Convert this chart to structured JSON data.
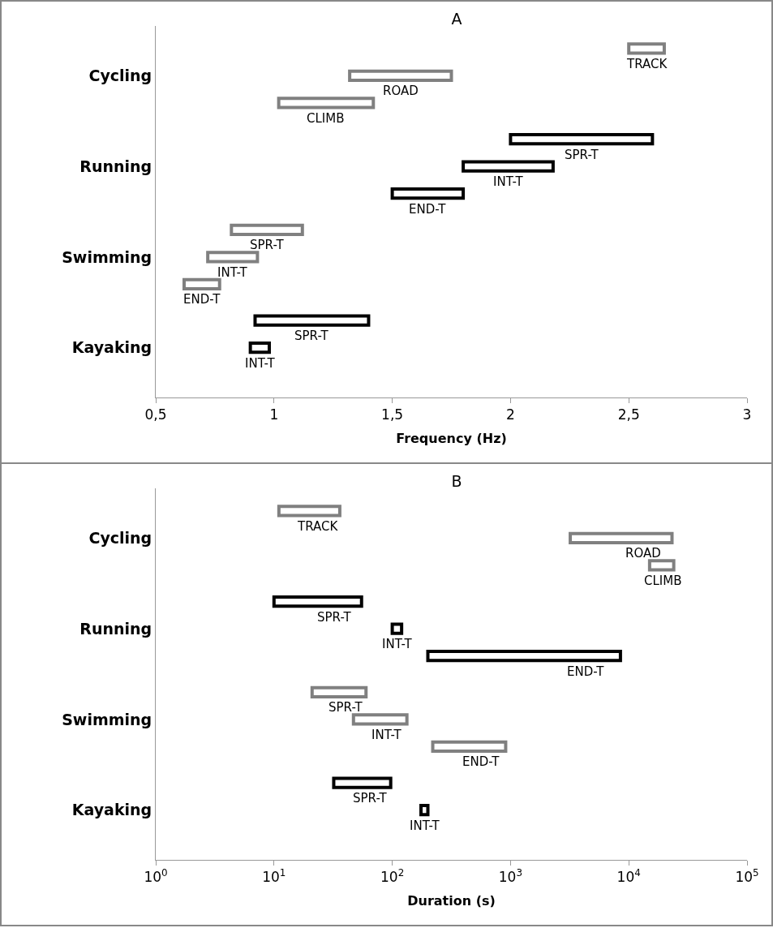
{
  "chart_data": [
    {
      "type": "bar",
      "title": "A",
      "orientation": "horizontal",
      "xlabel": "Frequency (Hz)",
      "xlim": [
        0.5,
        3
      ],
      "xticks": [
        {
          "value": 0.5,
          "label": "0,5"
        },
        1,
        {
          "value": 1.5,
          "label": "1,5"
        },
        2,
        {
          "value": 2.5,
          "label": "2,5"
        },
        3
      ],
      "categories": [
        "Cycling",
        "Running",
        "Swimming",
        "Kayaking"
      ],
      "series": [
        {
          "name": "TRACK",
          "colors": [
            "#808080",
            null,
            null,
            null
          ],
          "base": [
            2.5,
            null,
            null,
            null
          ],
          "values": [
            0.15,
            null,
            null,
            null
          ]
        },
        {
          "name": "ROAD",
          "colors": [
            "#808080",
            null,
            null,
            null
          ],
          "base": [
            1.32,
            null,
            null,
            null
          ],
          "values": [
            0.43,
            null,
            null,
            null
          ]
        },
        {
          "name": "CLIMB",
          "colors": [
            "#808080",
            null,
            null,
            null
          ],
          "base": [
            1.02,
            null,
            null,
            null
          ],
          "values": [
            0.4,
            null,
            null,
            null
          ]
        },
        {
          "name": "SPR-T",
          "colors": [
            null,
            "#000000",
            "#808080",
            "#000000"
          ],
          "base": [
            null,
            2.0,
            0.82,
            0.92
          ],
          "values": [
            null,
            0.6,
            0.3,
            0.48
          ]
        },
        {
          "name": "INT-T",
          "colors": [
            null,
            "#000000",
            "#808080",
            "#000000"
          ],
          "base": [
            null,
            1.8,
            0.72,
            0.9
          ],
          "values": [
            null,
            0.38,
            0.21,
            0.08
          ]
        },
        {
          "name": "END-T",
          "colors": [
            null,
            "#000000",
            "#808080",
            null
          ],
          "base": [
            null,
            1.5,
            0.62,
            null
          ],
          "values": [
            null,
            0.3,
            0.15,
            null
          ]
        }
      ]
    },
    {
      "type": "bar",
      "title": "B",
      "orientation": "horizontal",
      "log": "x",
      "xlabel": "Duration (s)",
      "xlim": [
        1,
        100000
      ],
      "xticks": [
        {
          "value": 1,
          "label": "10$^{0}$"
        },
        {
          "value": 10,
          "label": "10$^{1}$"
        },
        {
          "value": 100,
          "label": "10$^{2}$"
        },
        {
          "value": 1000,
          "label": "10$^{3}$"
        },
        {
          "value": 10000,
          "label": "10$^{4}$"
        },
        {
          "value": 100000,
          "label": "10$^{5}$"
        }
      ],
      "categories": [
        "Cycling",
        "Running",
        "Swimming",
        "Kayaking"
      ],
      "series": [
        {
          "name": "TRACK",
          "colors": [
            "#808080",
            null,
            null,
            null
          ],
          "base": [
            11,
            null,
            null,
            null
          ],
          "values": [
            25,
            null,
            null,
            null
          ]
        },
        {
          "name": "ROAD",
          "colors": [
            "#808080",
            null,
            null,
            null
          ],
          "base": [
            3200,
            null,
            null,
            null
          ],
          "values": [
            20000,
            null,
            null,
            null
          ]
        },
        {
          "name": "CLIMB",
          "colors": [
            "#808080",
            null,
            null,
            null
          ],
          "base": [
            15000,
            null,
            null,
            null
          ],
          "values": [
            9000,
            null,
            null,
            null
          ]
        },
        {
          "name": "SPR-T",
          "colors": [
            null,
            "#000000",
            "#808080",
            "#000000"
          ],
          "base": [
            null,
            10,
            21,
            32
          ],
          "values": [
            null,
            45,
            39,
            65
          ]
        },
        {
          "name": "INT-T",
          "colors": [
            null,
            "#000000",
            "#808080",
            "#000000"
          ],
          "base": [
            null,
            100,
            47,
            175
          ],
          "values": [
            null,
            20,
            86,
            25
          ]
        },
        {
          "name": "END-T",
          "colors": [
            null,
            "#000000",
            "#808080",
            null
          ],
          "base": [
            null,
            200,
            220,
            null
          ],
          "values": [
            null,
            8300,
            690,
            null
          ]
        }
      ]
    }
  ]
}
